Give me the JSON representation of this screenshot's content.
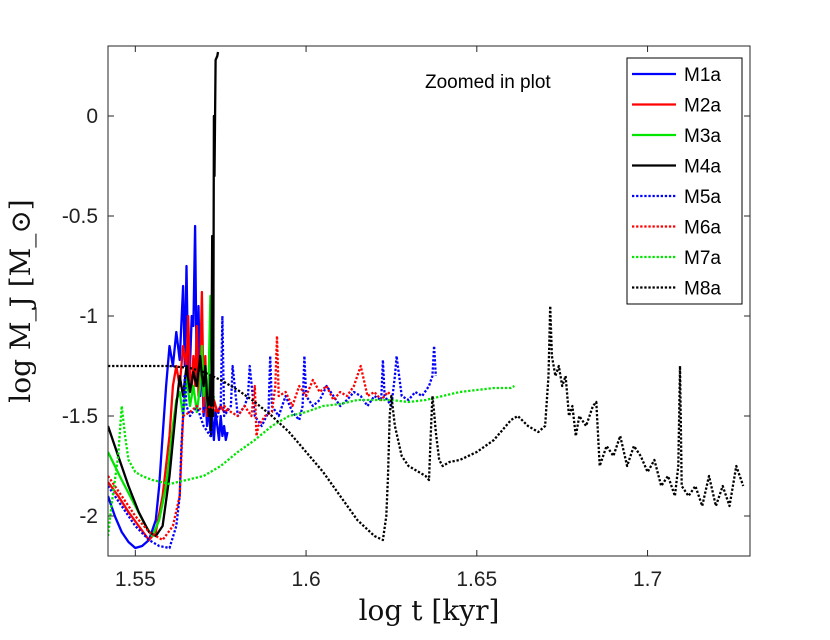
{
  "chart_data": {
    "type": "line",
    "title": "",
    "annotation": "Zoomed in plot",
    "xlabel": "log t [kyr]",
    "ylabel": "log M_J [M_⊙]",
    "xlim": [
      1.542,
      1.73
    ],
    "ylim": [
      -2.2,
      0.35
    ],
    "xticks": [
      1.55,
      1.6,
      1.65,
      1.7
    ],
    "xtick_labels": [
      "1.55",
      "1.6",
      "1.65",
      "1.7"
    ],
    "yticks": [
      -2,
      -1.5,
      -1,
      -0.5,
      0
    ],
    "ytick_labels": [
      "-2",
      "-1.5",
      "-1",
      "-0.5",
      "0"
    ],
    "legend_position": "top-right",
    "grid": false,
    "series": [
      {
        "name": "M1a",
        "color": "#0000ff",
        "style": "solid",
        "x": [
          1.542,
          1.544,
          1.546,
          1.548,
          1.55,
          1.552,
          1.554,
          1.556,
          1.557,
          1.558,
          1.559,
          1.56,
          1.561,
          1.562,
          1.563,
          1.564,
          1.5645,
          1.565,
          1.5655,
          1.566,
          1.5665,
          1.567,
          1.5675,
          1.568,
          1.5685,
          1.569,
          1.5695,
          1.57,
          1.5705,
          1.571,
          1.5715,
          1.572,
          1.5725,
          1.573,
          1.5735,
          1.574,
          1.5745,
          1.575,
          1.5755,
          1.576,
          1.5765,
          1.577
        ],
        "y": [
          -1.9,
          -2.0,
          -2.08,
          -2.13,
          -2.16,
          -2.15,
          -2.12,
          -2.02,
          -1.85,
          -1.6,
          -1.35,
          -1.15,
          -1.25,
          -1.08,
          -1.22,
          -0.85,
          -1.25,
          -0.75,
          -1.3,
          -1.25,
          -1.0,
          -1.05,
          -0.55,
          -1.35,
          -0.95,
          -1.4,
          -1.2,
          -1.5,
          -1.35,
          -1.55,
          -1.45,
          -1.58,
          -1.5,
          -1.62,
          -1.48,
          -1.55,
          -1.62,
          -1.5,
          -1.6,
          -1.55,
          -1.62,
          -1.58
        ]
      },
      {
        "name": "M2a",
        "color": "#ff0000",
        "style": "solid",
        "x": [
          1.542,
          1.545,
          1.548,
          1.551,
          1.554,
          1.556,
          1.558,
          1.56,
          1.561,
          1.562,
          1.563,
          1.564,
          1.565,
          1.5655,
          1.566,
          1.5665,
          1.567,
          1.5675,
          1.568,
          1.5685,
          1.569,
          1.5695,
          1.57,
          1.5705,
          1.571,
          1.5715,
          1.572,
          1.5725,
          1.573,
          1.574,
          1.575,
          1.576,
          1.577
        ],
        "y": [
          -1.83,
          -1.9,
          -1.98,
          -2.05,
          -2.12,
          -2.08,
          -1.9,
          -1.6,
          -1.35,
          -1.25,
          -1.35,
          -1.15,
          -1.25,
          -1.0,
          -1.3,
          -1.35,
          -1.2,
          -1.35,
          -1.05,
          -1.4,
          -1.25,
          -0.88,
          -1.45,
          -1.2,
          -1.5,
          -1.35,
          -1.45,
          -1.48,
          -1.42,
          -1.48,
          -1.45,
          -1.48,
          -1.47
        ]
      },
      {
        "name": "M3a",
        "color": "#00e600",
        "style": "solid",
        "x": [
          1.542,
          1.546,
          1.55,
          1.553,
          1.555,
          1.557,
          1.559,
          1.561,
          1.562,
          1.563,
          1.564,
          1.565,
          1.566,
          1.567,
          1.568,
          1.569,
          1.5695,
          1.57,
          1.5705,
          1.571,
          1.5715,
          1.572,
          1.5725,
          1.573
        ],
        "y": [
          -1.68,
          -1.82,
          -1.95,
          -2.05,
          -2.1,
          -2.02,
          -1.85,
          -1.55,
          -1.42,
          -1.38,
          -1.5,
          -1.3,
          -1.45,
          -1.35,
          -1.48,
          -1.35,
          -1.15,
          -1.4,
          -1.25,
          -1.45,
          -1.3,
          -0.9,
          -1.45,
          -1.4
        ]
      },
      {
        "name": "M4a",
        "color": "#000000",
        "style": "solid",
        "x": [
          1.542,
          1.545,
          1.548,
          1.551,
          1.554,
          1.556,
          1.558,
          1.56,
          1.562,
          1.563,
          1.564,
          1.565,
          1.566,
          1.567,
          1.568,
          1.569,
          1.5695,
          1.57,
          1.5705,
          1.571,
          1.5715,
          1.572,
          1.5722,
          1.5725,
          1.5728,
          1.573,
          1.5732,
          1.5735,
          1.574,
          1.5742
        ],
        "y": [
          -1.55,
          -1.7,
          -1.85,
          -1.98,
          -2.08,
          -2.1,
          -2.05,
          -1.8,
          -1.45,
          -1.3,
          -1.4,
          -1.25,
          -1.38,
          -1.28,
          -1.35,
          -1.2,
          -1.3,
          -1.35,
          -1.25,
          -1.4,
          -1.5,
          -1.3,
          -1.6,
          -0.6,
          -1.5,
          0.0,
          -0.3,
          0.28,
          0.3,
          0.32
        ]
      },
      {
        "name": "M5a",
        "color": "#0000ff",
        "style": "dotted",
        "x": [
          1.542,
          1.546,
          1.55,
          1.554,
          1.557,
          1.56,
          1.562,
          1.563,
          1.5635,
          1.564,
          1.5645,
          1.565,
          1.566,
          1.568,
          1.57,
          1.572,
          1.574,
          1.575,
          1.5755,
          1.576,
          1.578,
          1.5785,
          1.58,
          1.582,
          1.583,
          1.5835,
          1.585,
          1.587,
          1.589,
          1.5895,
          1.59,
          1.592,
          1.594,
          1.596,
          1.598,
          1.599,
          1.5995,
          1.6,
          1.602,
          1.604,
          1.606,
          1.608,
          1.61,
          1.612,
          1.614,
          1.616,
          1.618,
          1.62,
          1.622,
          1.6225,
          1.623,
          1.625,
          1.626,
          1.6265,
          1.628,
          1.63,
          1.632,
          1.634,
          1.636,
          1.637,
          1.6375,
          1.638
        ],
        "y": [
          -1.85,
          -1.95,
          -2.05,
          -2.12,
          -2.15,
          -2.16,
          -2.05,
          -1.9,
          -1.65,
          -1.5,
          -1.3,
          -1.45,
          -1.5,
          -1.45,
          -1.55,
          -1.6,
          -1.5,
          -1.45,
          -1.0,
          -1.5,
          -1.45,
          -1.25,
          -1.5,
          -1.45,
          -1.4,
          -1.25,
          -1.5,
          -1.55,
          -1.48,
          -1.2,
          -1.45,
          -1.5,
          -1.4,
          -1.48,
          -1.52,
          -1.45,
          -1.2,
          -1.4,
          -1.45,
          -1.42,
          -1.35,
          -1.4,
          -1.45,
          -1.42,
          -1.38,
          -1.4,
          -1.45,
          -1.4,
          -1.42,
          -1.22,
          -1.4,
          -1.45,
          -1.3,
          -1.2,
          -1.4,
          -1.42,
          -1.38,
          -1.4,
          -1.35,
          -1.3,
          -1.15,
          -1.3
        ]
      },
      {
        "name": "M6a",
        "color": "#ff0000",
        "style": "dotted",
        "x": [
          1.542,
          1.546,
          1.55,
          1.554,
          1.558,
          1.561,
          1.563,
          1.5635,
          1.564,
          1.566,
          1.568,
          1.57,
          1.572,
          1.574,
          1.576,
          1.578,
          1.58,
          1.582,
          1.584,
          1.585,
          1.5855,
          1.586,
          1.588,
          1.59,
          1.591,
          1.5915,
          1.592,
          1.594,
          1.596,
          1.598,
          1.6,
          1.602,
          1.604,
          1.606,
          1.608,
          1.61,
          1.612,
          1.614,
          1.616,
          1.618,
          1.62,
          1.622,
          1.624,
          1.625
        ],
        "y": [
          -1.8,
          -1.9,
          -2.0,
          -2.08,
          -2.12,
          -2.05,
          -1.9,
          -1.7,
          -1.5,
          -1.48,
          -1.45,
          -1.48,
          -1.45,
          -1.48,
          -1.45,
          -1.48,
          -1.5,
          -1.45,
          -1.5,
          -1.35,
          -1.6,
          -1.55,
          -1.5,
          -1.48,
          -1.35,
          -1.1,
          -1.4,
          -1.38,
          -1.45,
          -1.35,
          -1.4,
          -1.32,
          -1.38,
          -1.35,
          -1.42,
          -1.38,
          -1.4,
          -1.35,
          -1.25,
          -1.4,
          -1.38,
          -1.42,
          -1.38,
          -1.4
        ]
      },
      {
        "name": "M7a",
        "color": "#00e600",
        "style": "dotted",
        "x": [
          1.542,
          1.543,
          1.545,
          1.546,
          1.547,
          1.548,
          1.55,
          1.552,
          1.555,
          1.56,
          1.565,
          1.57,
          1.575,
          1.58,
          1.585,
          1.59,
          1.595,
          1.6,
          1.605,
          1.61,
          1.615,
          1.62,
          1.625,
          1.63,
          1.635,
          1.64,
          1.645,
          1.65,
          1.655,
          1.66,
          1.661
        ],
        "y": [
          -2.1,
          -1.95,
          -1.7,
          -1.45,
          -1.6,
          -1.72,
          -1.78,
          -1.8,
          -1.82,
          -1.84,
          -1.82,
          -1.8,
          -1.75,
          -1.68,
          -1.62,
          -1.55,
          -1.5,
          -1.48,
          -1.45,
          -1.44,
          -1.42,
          -1.42,
          -1.42,
          -1.43,
          -1.42,
          -1.4,
          -1.38,
          -1.37,
          -1.36,
          -1.36,
          -1.35
        ]
      },
      {
        "name": "M8a",
        "color": "#000000",
        "style": "dotted",
        "x": [
          1.542,
          1.55,
          1.56,
          1.566,
          1.57,
          1.575,
          1.58,
          1.585,
          1.59,
          1.595,
          1.6,
          1.605,
          1.61,
          1.615,
          1.62,
          1.6225,
          1.6235,
          1.624,
          1.6245,
          1.625,
          1.626,
          1.628,
          1.63,
          1.633,
          1.635,
          1.636,
          1.6365,
          1.637,
          1.6375,
          1.638,
          1.6385,
          1.639,
          1.64,
          1.642,
          1.645,
          1.65,
          1.655,
          1.66,
          1.662,
          1.665,
          1.668,
          1.67,
          1.671,
          1.6715,
          1.672,
          1.673,
          1.674,
          1.675,
          1.676,
          1.677,
          1.678,
          1.679,
          1.68,
          1.682,
          1.684,
          1.685,
          1.686,
          1.688,
          1.69,
          1.692,
          1.694,
          1.696,
          1.698,
          1.7,
          1.702,
          1.704,
          1.706,
          1.708,
          1.709,
          1.7095,
          1.71,
          1.712,
          1.714,
          1.716,
          1.718,
          1.72,
          1.722,
          1.724,
          1.726,
          1.728
        ],
        "y": [
          -1.25,
          -1.25,
          -1.25,
          -1.26,
          -1.28,
          -1.32,
          -1.37,
          -1.43,
          -1.5,
          -1.58,
          -1.68,
          -1.78,
          -1.9,
          -2.02,
          -2.1,
          -2.12,
          -2.0,
          -1.8,
          -1.5,
          -1.4,
          -1.55,
          -1.7,
          -1.75,
          -1.78,
          -1.8,
          -1.82,
          -1.6,
          -1.4,
          -1.48,
          -1.58,
          -1.65,
          -1.72,
          -1.75,
          -1.73,
          -1.72,
          -1.68,
          -1.62,
          -1.52,
          -1.5,
          -1.55,
          -1.58,
          -1.55,
          -1.3,
          -0.95,
          -1.2,
          -1.3,
          -1.25,
          -1.35,
          -1.3,
          -1.5,
          -1.45,
          -1.6,
          -1.5,
          -1.55,
          -1.45,
          -1.43,
          -1.75,
          -1.65,
          -1.7,
          -1.6,
          -1.75,
          -1.65,
          -1.7,
          -1.78,
          -1.72,
          -1.85,
          -1.8,
          -1.9,
          -1.75,
          -1.25,
          -1.85,
          -1.9,
          -1.85,
          -1.95,
          -1.8,
          -1.95,
          -1.85,
          -1.95,
          -1.75,
          -1.85
        ]
      }
    ]
  }
}
